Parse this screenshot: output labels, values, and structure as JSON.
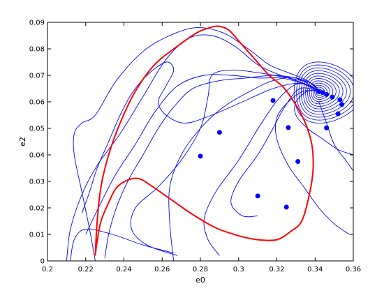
{
  "chart_data": {
    "type": "line",
    "title": "",
    "xlabel": "e0",
    "ylabel": "e2",
    "xlim": [
      0.2,
      0.36
    ],
    "ylim": [
      0,
      0.09
    ],
    "x_ticks": [
      "0.2",
      "0.22",
      "0.24",
      "0.26",
      "0.28",
      "0.3",
      "0.32",
      "0.34",
      "0.36"
    ],
    "y_ticks": [
      "0",
      "0.01",
      "0.02",
      "0.03",
      "0.04",
      "0.05",
      "0.06",
      "0.07",
      "0.08",
      "0.09"
    ],
    "grid": false,
    "legend": "none",
    "colors": {
      "trajectories": "#0000ff",
      "boundary": "#ff0000",
      "axes": "#000000"
    },
    "series": [
      {
        "role": "red-boundary-closed-curve",
        "x": [
          0.225,
          0.226,
          0.228,
          0.232,
          0.238,
          0.246,
          0.256,
          0.268,
          0.278,
          0.285,
          0.29,
          0.295,
          0.3,
          0.308,
          0.316,
          0.324,
          0.333,
          0.338,
          0.339,
          0.337,
          0.333,
          0.327,
          0.32,
          0.31,
          0.3,
          0.288,
          0.276,
          0.264,
          0.254,
          0.248,
          0.242,
          0.236,
          0.232,
          0.228,
          0.226,
          0.225
        ],
        "y": [
          0.002,
          0.015,
          0.028,
          0.04,
          0.052,
          0.064,
          0.074,
          0.081,
          0.086,
          0.088,
          0.0885,
          0.087,
          0.083,
          0.0765,
          0.07,
          0.065,
          0.055,
          0.045,
          0.035,
          0.025,
          0.015,
          0.011,
          0.008,
          0.008,
          0.0095,
          0.0125,
          0.0175,
          0.0235,
          0.0285,
          0.031,
          0.0305,
          0.0275,
          0.022,
          0.015,
          0.0075,
          0.002
        ]
      },
      {
        "role": "blue-trajectory-1",
        "x": [
          0.225,
          0.222,
          0.218,
          0.214,
          0.214,
          0.218,
          0.225,
          0.236,
          0.25,
          0.264,
          0.278,
          0.292,
          0.305,
          0.316,
          0.326,
          0.336,
          0.342
        ],
        "y": [
          0.0,
          0.012,
          0.026,
          0.04,
          0.048,
          0.052,
          0.055,
          0.068,
          0.079,
          0.085,
          0.088,
          0.086,
          0.08,
          0.074,
          0.071,
          0.068,
          0.064
        ]
      },
      {
        "role": "blue-trajectory-2",
        "x": [
          0.21,
          0.212,
          0.218,
          0.226,
          0.238,
          0.25,
          0.262,
          0.274,
          0.286,
          0.298,
          0.31,
          0.322,
          0.334,
          0.342
        ],
        "y": [
          0.0,
          0.012,
          0.025,
          0.036,
          0.048,
          0.062,
          0.076,
          0.084,
          0.085,
          0.081,
          0.074,
          0.07,
          0.067,
          0.064
        ]
      },
      {
        "role": "blue-trajectory-3",
        "x": [
          0.218,
          0.222,
          0.226,
          0.232,
          0.238,
          0.244,
          0.252,
          0.262,
          0.266,
          0.262,
          0.258,
          0.262,
          0.272,
          0.286,
          0.302,
          0.318,
          0.332,
          0.342
        ],
        "y": [
          0.018,
          0.026,
          0.035,
          0.045,
          0.055,
          0.063,
          0.07,
          0.075,
          0.072,
          0.066,
          0.06,
          0.055,
          0.052,
          0.055,
          0.06,
          0.065,
          0.067,
          0.064
        ]
      },
      {
        "role": "blue-trajectory-4",
        "x": [
          0.22,
          0.228,
          0.236,
          0.246,
          0.256,
          0.268,
          0.282,
          0.296,
          0.31,
          0.322,
          0.333,
          0.342
        ],
        "y": [
          0.01,
          0.022,
          0.033,
          0.044,
          0.056,
          0.066,
          0.07,
          0.07,
          0.069,
          0.069,
          0.067,
          0.064
        ]
      },
      {
        "role": "blue-trajectory-5",
        "x": [
          0.23,
          0.232,
          0.236,
          0.242,
          0.25,
          0.258,
          0.266,
          0.276,
          0.29,
          0.304,
          0.318,
          0.33,
          0.338,
          0.342
        ],
        "y": [
          0.001,
          0.01,
          0.02,
          0.03,
          0.04,
          0.05,
          0.058,
          0.065,
          0.068,
          0.069,
          0.07,
          0.069,
          0.067,
          0.064
        ]
      },
      {
        "role": "blue-trajectory-6",
        "x": [
          0.268,
          0.252,
          0.244,
          0.246,
          0.258,
          0.27,
          0.28,
          0.284,
          0.286,
          0.296,
          0.31,
          0.326,
          0.338,
          0.342
        ],
        "y": [
          0.002,
          0.006,
          0.012,
          0.02,
          0.028,
          0.038,
          0.05,
          0.062,
          0.07,
          0.072,
          0.071,
          0.069,
          0.067,
          0.064
        ]
      },
      {
        "role": "blue-trajectory-7",
        "x": [
          0.266,
          0.264,
          0.264,
          0.27,
          0.28,
          0.292,
          0.306,
          0.318,
          0.33,
          0.342
        ],
        "y": [
          0.0,
          0.014,
          0.028,
          0.04,
          0.05,
          0.058,
          0.064,
          0.068,
          0.069,
          0.064
        ]
      },
      {
        "role": "blue-trajectory-8",
        "x": [
          0.29,
          0.284,
          0.282,
          0.288,
          0.3,
          0.312,
          0.322,
          0.332,
          0.342
        ],
        "y": [
          0.002,
          0.008,
          0.016,
          0.026,
          0.038,
          0.052,
          0.062,
          0.067,
          0.064
        ]
      },
      {
        "role": "blue-trajectory-9",
        "x": [
          0.31,
          0.302,
          0.296,
          0.3,
          0.31,
          0.318,
          0.324,
          0.332,
          0.342
        ],
        "y": [
          0.017,
          0.017,
          0.022,
          0.03,
          0.04,
          0.05,
          0.058,
          0.065,
          0.064
        ]
      },
      {
        "role": "blue-trajectory-10",
        "x": [
          0.358,
          0.35,
          0.342,
          0.334,
          0.326,
          0.32,
          0.32,
          0.326,
          0.334,
          0.342
        ],
        "y": [
          0.01,
          0.014,
          0.02,
          0.028,
          0.036,
          0.046,
          0.054,
          0.06,
          0.064,
          0.064
        ]
      },
      {
        "role": "blue-trajectory-11",
        "x": [
          0.36,
          0.352,
          0.344,
          0.336,
          0.33,
          0.33,
          0.336,
          0.342
        ],
        "y": [
          0.04,
          0.042,
          0.046,
          0.05,
          0.055,
          0.06,
          0.064,
          0.064
        ]
      },
      {
        "role": "blue-trajectory-12",
        "x": [
          0.342,
          0.346,
          0.35,
          0.356,
          0.36
        ],
        "y": [
          0.06,
          0.052,
          0.044,
          0.038,
          0.034
        ]
      },
      {
        "role": "blue-trajectory-13",
        "x": [
          0.212,
          0.214,
          0.22,
          0.234,
          0.25,
          0.266
        ],
        "y": [
          0.0,
          0.008,
          0.012,
          0.01,
          0.006,
          0.003
        ]
      }
    ],
    "spiral": {
      "center": [
        0.342,
        0.0638
      ],
      "outer_radius_x": 0.018,
      "outer_radius_y": 0.012,
      "turns": 14
    },
    "markers": {
      "x": [
        0.29,
        0.28,
        0.31,
        0.318,
        0.326,
        0.325,
        0.331,
        0.346,
        0.352,
        0.354,
        0.353,
        0.349,
        0.346,
        0.344,
        0.342
      ],
      "y": [
        0.0485,
        0.0395,
        0.0245,
        0.0605,
        0.0503,
        0.0203,
        0.0375,
        0.0502,
        0.0555,
        0.059,
        0.0608,
        0.0618,
        0.0628,
        0.0635,
        0.0638
      ]
    }
  }
}
